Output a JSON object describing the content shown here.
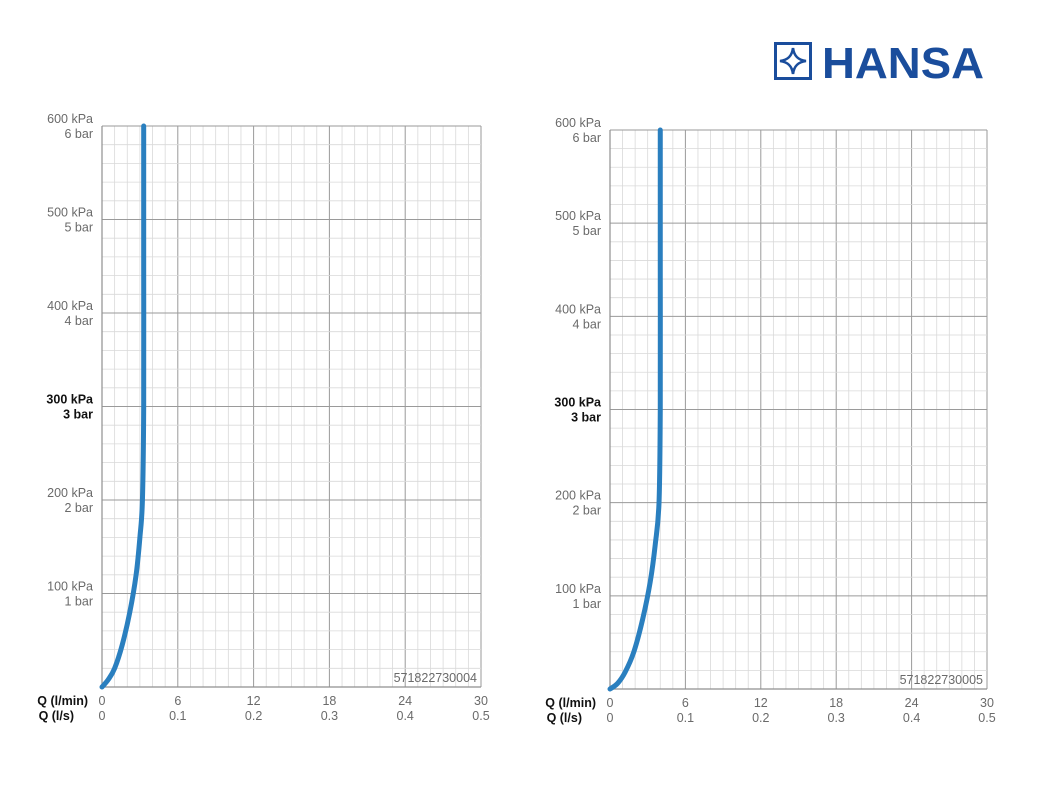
{
  "brand": {
    "name": "HANSA",
    "color": "#1a4d9c"
  },
  "chart_data": [
    {
      "type": "line",
      "code": "571822730004",
      "x_label_primary": "Q (l/min)",
      "x_label_secondary": "Q (l/s)",
      "x_ticks_primary": [
        "0",
        "6",
        "12",
        "18",
        "24",
        "30"
      ],
      "x_ticks_secondary": [
        "0",
        "0.1",
        "0.2",
        "0.3",
        "0.4",
        "0.5"
      ],
      "y_ticks": [
        {
          "value": 100,
          "kpa": "100 kPa",
          "bar": "1 bar",
          "bold": false
        },
        {
          "value": 200,
          "kpa": "200 kPa",
          "bar": "2 bar",
          "bold": false
        },
        {
          "value": 300,
          "kpa": "300 kPa",
          "bar": "3 bar",
          "bold": true
        },
        {
          "value": 400,
          "kpa": "400 kPa",
          "bar": "4 bar",
          "bold": false
        },
        {
          "value": 500,
          "kpa": "500 kPa",
          "bar": "5 bar",
          "bold": false
        },
        {
          "value": 600,
          "kpa": "600 kPa",
          "bar": "6 bar",
          "bold": false
        }
      ],
      "xlim": [
        0,
        30
      ],
      "ylim": [
        0,
        600
      ],
      "grid": true,
      "series": [
        {
          "color": "#2a7fbf",
          "points": [
            [
              0,
              0
            ],
            [
              0.5,
              8
            ],
            [
              1,
              20
            ],
            [
              1.6,
              45
            ],
            [
              2.2,
              80
            ],
            [
              2.7,
              120
            ],
            [
              3.0,
              160
            ],
            [
              3.2,
              200
            ],
            [
              3.3,
              300
            ],
            [
              3.3,
              450
            ],
            [
              3.3,
              600
            ]
          ]
        }
      ]
    },
    {
      "type": "line",
      "code": "571822730005",
      "x_label_primary": "Q (l/min)",
      "x_label_secondary": "Q (l/s)",
      "x_ticks_primary": [
        "0",
        "6",
        "12",
        "18",
        "24",
        "30"
      ],
      "x_ticks_secondary": [
        "0",
        "0.1",
        "0.2",
        "0.3",
        "0.4",
        "0.5"
      ],
      "y_ticks": [
        {
          "value": 100,
          "kpa": "100 kPa",
          "bar": "1 bar",
          "bold": false
        },
        {
          "value": 200,
          "kpa": "200 kPa",
          "bar": "2 bar",
          "bold": false
        },
        {
          "value": 300,
          "kpa": "300 kPa",
          "bar": "3 bar",
          "bold": true
        },
        {
          "value": 400,
          "kpa": "400 kPa",
          "bar": "4 bar",
          "bold": false
        },
        {
          "value": 500,
          "kpa": "500 kPa",
          "bar": "5 bar",
          "bold": false
        },
        {
          "value": 600,
          "kpa": "600 kPa",
          "bar": "6 bar",
          "bold": false
        }
      ],
      "xlim": [
        0,
        30
      ],
      "ylim": [
        0,
        600
      ],
      "grid": true,
      "series": [
        {
          "color": "#2a7fbf",
          "points": [
            [
              0,
              0
            ],
            [
              0.6,
              6
            ],
            [
              1.2,
              18
            ],
            [
              1.9,
              40
            ],
            [
              2.6,
              75
            ],
            [
              3.2,
              115
            ],
            [
              3.6,
              155
            ],
            [
              3.9,
              200
            ],
            [
              4.0,
              300
            ],
            [
              4.0,
              450
            ],
            [
              4.0,
              600
            ]
          ]
        }
      ]
    }
  ]
}
